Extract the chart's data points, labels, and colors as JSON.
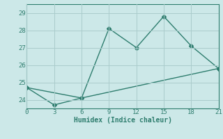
{
  "xlabel": "Humidex (Indice chaleur)",
  "line1_x": [
    0,
    6,
    9,
    12,
    15,
    18,
    21
  ],
  "line1_y": [
    24.7,
    24.1,
    28.1,
    27.0,
    28.8,
    27.1,
    25.8
  ],
  "line2_x": [
    0,
    3,
    6,
    21
  ],
  "line2_y": [
    24.7,
    23.7,
    24.1,
    25.8
  ],
  "color": "#2e7d6e",
  "bg_color": "#cce8e8",
  "grid_color": "#aacccc",
  "xlim": [
    0,
    21
  ],
  "ylim": [
    23.5,
    29.5
  ],
  "xticks": [
    0,
    3,
    6,
    9,
    12,
    15,
    18,
    21
  ],
  "yticks": [
    24,
    25,
    26,
    27,
    28,
    29
  ],
  "markersize": 3,
  "linewidth": 1.0
}
